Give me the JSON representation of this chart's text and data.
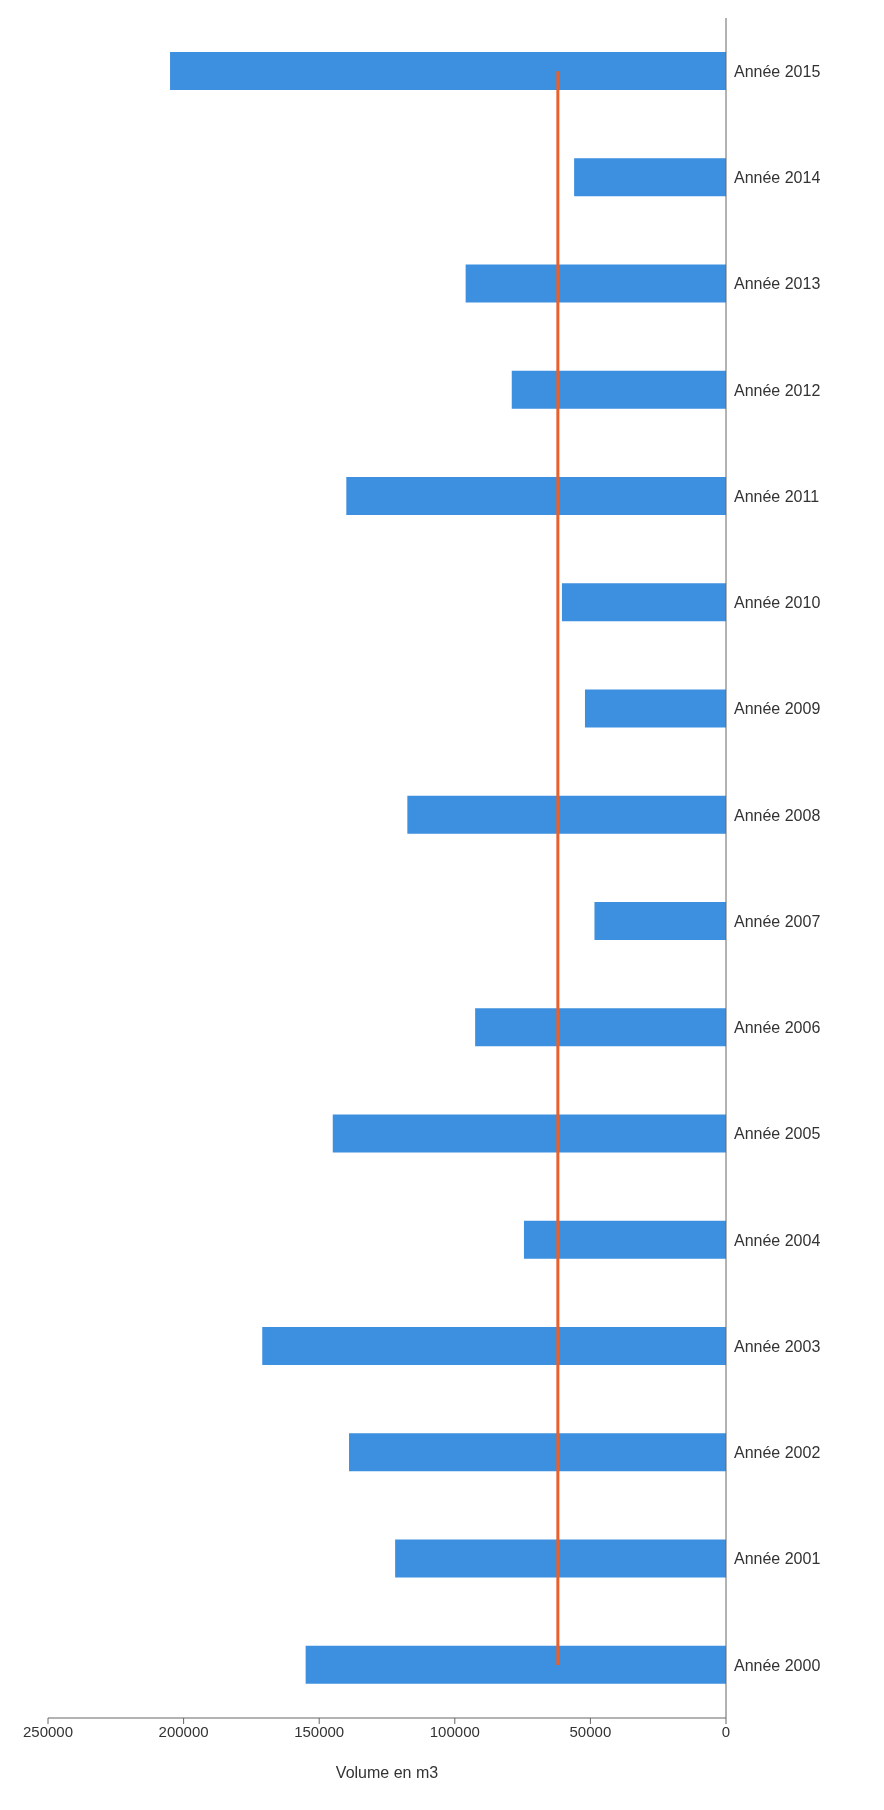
{
  "chart_data": {
    "type": "bar",
    "orientation": "horizontal",
    "xlabel": "Volume en m3",
    "categories": [
      "Année 2015",
      "Année 2014",
      "Année 2013",
      "Année 2012",
      "Année 2011",
      "Année 2010",
      "Année 2009",
      "Année 2008",
      "Année 2007",
      "Année 2006",
      "Année 2005",
      "Année 2004",
      "Année 2003",
      "Année 2002",
      "Année 2001",
      "Année 2000"
    ],
    "series": [
      {
        "color": "#3d8fdf",
        "values": [
          205000,
          56000,
          96000,
          79000,
          140000,
          60500,
          52000,
          117500,
          48500,
          92500,
          145000,
          74500,
          171000,
          139000,
          122000,
          155000
        ]
      },
      {
        "type": "line",
        "color": "#e8602c",
        "values": [
          62000,
          62000,
          62000,
          62000,
          62000,
          62000,
          62000,
          62000,
          62000,
          62000,
          62000,
          62000,
          62000,
          62000,
          62000,
          62000
        ]
      }
    ],
    "xlim": [
      250000,
      0
    ],
    "xticks": [
      0,
      50000,
      100000,
      150000,
      200000,
      250000
    ],
    "grid": false,
    "legend": false
  }
}
